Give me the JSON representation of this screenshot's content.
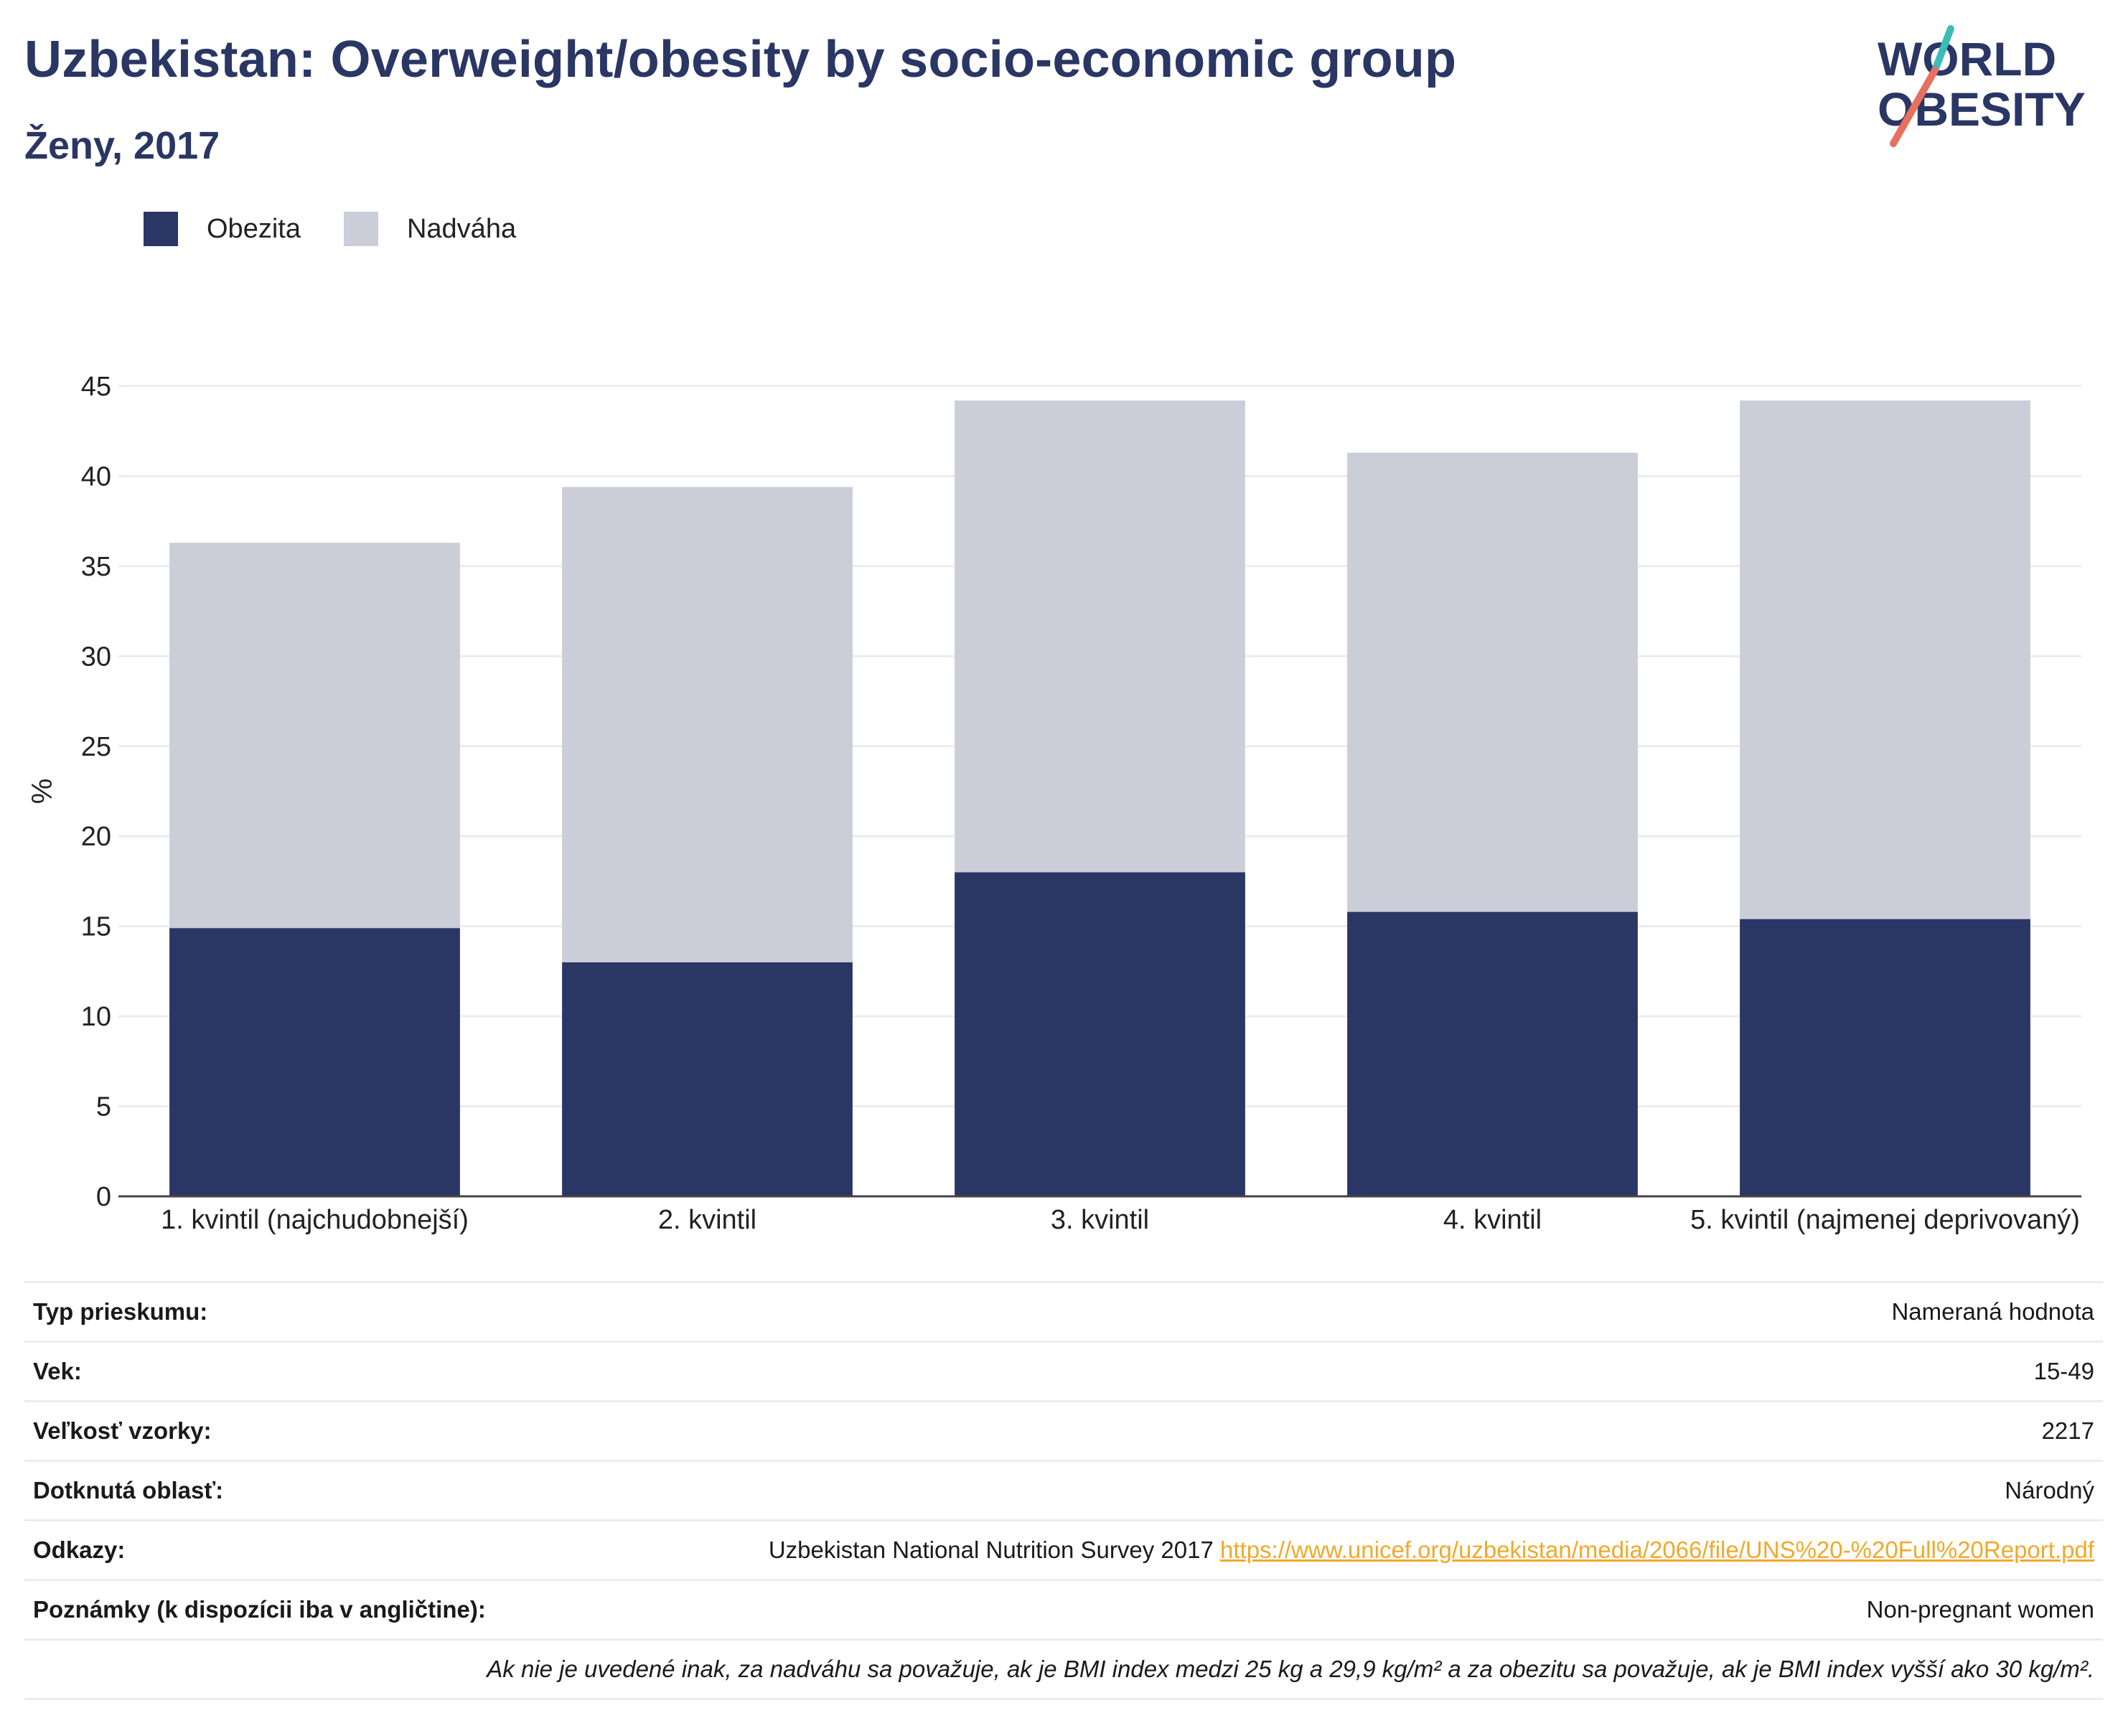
{
  "header": {
    "title": "Uzbekistan: Overweight/obesity by socio-economic group",
    "subtitle": "Ženy, 2017"
  },
  "logo": {
    "line1": "WORLD",
    "line2": "OBESITY"
  },
  "colors": {
    "obesity": "#2a3664",
    "overweight": "#cbcdd8",
    "logo_teal": "#3bbcb8",
    "logo_coral": "#e8705e",
    "link": "#f0a92b"
  },
  "chart_data": {
    "type": "bar",
    "stacked": true,
    "ylabel": "%",
    "xlabel": "",
    "ylim": [
      0,
      45
    ],
    "yticks": [
      0,
      5,
      10,
      15,
      20,
      25,
      30,
      35,
      40,
      45
    ],
    "grid": true,
    "legend_position": "top-left",
    "categories": [
      "1. kvintil (najchudobnejší)",
      "2. kvintil",
      "3. kvintil",
      "4. kvintil",
      "5. kvintil (najmenej deprivovaný)"
    ],
    "series": [
      {
        "name": "Obezita",
        "values": [
          14.9,
          13.0,
          18.0,
          15.8,
          15.4
        ]
      },
      {
        "name": "Nadváha",
        "values": [
          21.4,
          26.4,
          26.2,
          25.5,
          28.8
        ]
      }
    ]
  },
  "info": {
    "rows": [
      {
        "label": "Typ prieskumu:",
        "value": "Nameraná hodnota"
      },
      {
        "label": "Vek:",
        "value": "15-49"
      },
      {
        "label": "Veľkosť vzorky:",
        "value": "2217"
      },
      {
        "label": "Dotknutá oblasť:",
        "value": "Národný"
      }
    ],
    "references": {
      "label": "Odkazy:",
      "text": "Uzbekistan National Nutrition Survey 2017",
      "url": "https://www.unicef.org/uzbekistan/media/2066/file/UNS%20-%20Full%20Report.pdf"
    },
    "notes": {
      "label": "Poznámky (k dispozícii iba v angličtine):",
      "value": "Non-pregnant women"
    },
    "footnote": "Ak nie je uvedené inak, za nadváhu sa považuje, ak je BMI index medzi 25 kg a 29,9 kg/m² a za obezitu sa považuje, ak je BMI index vyšší ako 30 kg/m²."
  }
}
